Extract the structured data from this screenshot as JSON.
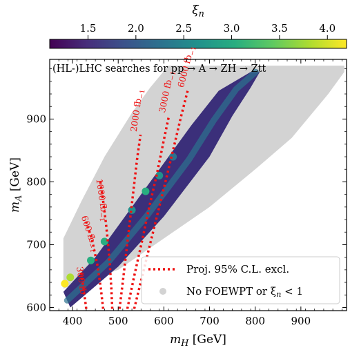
{
  "chart_data": {
    "type": "scatter",
    "annotation": "(HL-)LHC searches for pp → A → ZH → Ztt",
    "xlabel": "m_H [GeV]",
    "ylabel": "m_A [GeV]",
    "xlim": [
      350,
      1000
    ],
    "ylim": [
      595,
      995
    ],
    "xticks": [
      "400",
      "500",
      "600",
      "700",
      "800",
      "900"
    ],
    "yticks": [
      "600",
      "700",
      "800",
      "900"
    ],
    "colorbar": {
      "label": "ξ_n",
      "range": [
        1.1,
        4.2
      ],
      "ticks": [
        "1.5",
        "2.0",
        "2.5",
        "3.0",
        "3.5",
        "4.0"
      ],
      "colormap": "viridis"
    },
    "background_region": {
      "label": "No FOEWPT or ξ_n < 1",
      "color": "#d3d3d3",
      "lower_edge": [
        [
          380,
          630
        ],
        [
          500,
          660
        ],
        [
          600,
          710
        ],
        [
          700,
          760
        ],
        [
          800,
          820
        ],
        [
          880,
          870
        ],
        [
          960,
          940
        ],
        [
          995,
          975
        ]
      ],
      "upper_edge": [
        [
          380,
          710
        ],
        [
          420,
          770
        ],
        [
          470,
          840
        ],
        [
          530,
          910
        ],
        [
          570,
          950
        ],
        [
          610,
          985
        ],
        [
          995,
          985
        ]
      ]
    },
    "colored_band": {
      "description": "points with FOEWPT and ξ_n ≥ 1",
      "lower_edge": [
        [
          395,
          600
        ],
        [
          500,
          665
        ],
        [
          600,
          745
        ],
        [
          700,
          840
        ],
        [
          750,
          905
        ],
        [
          790,
          950
        ],
        [
          810,
          975
        ]
      ],
      "upper_edge": [
        [
          380,
          625
        ],
        [
          450,
          680
        ],
        [
          520,
          750
        ],
        [
          600,
          830
        ],
        [
          660,
          890
        ],
        [
          720,
          945
        ],
        [
          790,
          975
        ]
      ],
      "hotspots": [
        {
          "x": 383,
          "y": 638,
          "xi": 4.1
        },
        {
          "x": 395,
          "y": 648,
          "xi": 3.7
        },
        {
          "x": 440,
          "y": 675,
          "xi": 3.0
        },
        {
          "x": 470,
          "y": 705,
          "xi": 2.9
        },
        {
          "x": 530,
          "y": 755,
          "xi": 2.6
        },
        {
          "x": 560,
          "y": 785,
          "xi": 2.9
        },
        {
          "x": 590,
          "y": 810,
          "xi": 2.6
        },
        {
          "x": 620,
          "y": 840,
          "xi": 2.4
        }
      ]
    },
    "series": [
      {
        "name": "300 fb⁻¹",
        "label": "300 fb",
        "x": [
          430,
          427,
          424,
          421,
          418
        ],
        "y": [
          598,
          615,
          630,
          645,
          660
        ]
      },
      {
        "name": "600 fb⁻¹",
        "label": "600 fb$_{-1}$",
        "x": [
          467,
          462,
          455,
          448,
          442,
          435,
          428
        ],
        "y": [
          598,
          630,
          665,
          690,
          710,
          725,
          740
        ]
      },
      {
        "name": "1000 fb⁻¹",
        "label": "1000 fb$_{-1}$",
        "x": [
          487,
          485,
          482,
          478,
          473,
          467,
          461
        ],
        "y": [
          598,
          630,
          665,
          700,
          735,
          770,
          800
        ]
      },
      {
        "name": "2000 fb⁻¹",
        "label": "2000 fb$_{-1}$",
        "x": [
          503,
          510,
          518,
          526,
          534,
          542,
          549
        ],
        "y": [
          598,
          640,
          690,
          740,
          790,
          840,
          875
        ]
      },
      {
        "name": "3000 fb⁻¹",
        "label": "3000 fb$_{-1}$",
        "x": [
          520,
          535,
          552,
          568,
          584,
          598,
          611
        ],
        "y": [
          598,
          650,
          705,
          760,
          810,
          860,
          905
        ]
      },
      {
        "name": "6000 fb⁻¹",
        "label": "6000 fb$_{-1}$",
        "x": [
          535,
          556,
          578,
          600,
          620,
          638,
          652
        ],
        "y": [
          598,
          660,
          725,
          790,
          850,
          905,
          945
        ]
      }
    ],
    "legend": {
      "placement": "lower-right",
      "entries": [
        "Proj. 95% C.L. excl.",
        "No FOEWPT or ξ_n < 1"
      ]
    }
  },
  "colors": {
    "exclusion_line": "#ee1111",
    "background_points": "#d3d3d3",
    "frame": "#000000"
  }
}
